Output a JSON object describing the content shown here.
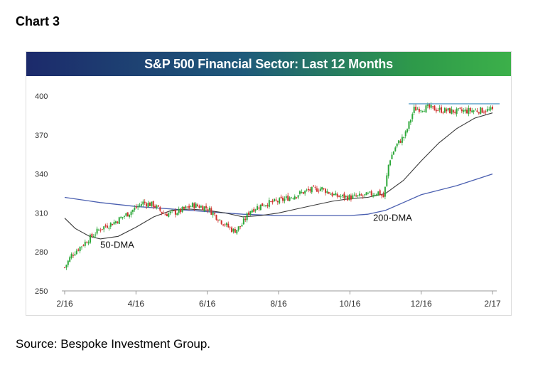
{
  "page": {
    "chart_label": "Chart 3",
    "source": "Source: Bespoke Investment Group."
  },
  "colors": {
    "up": "#2ea83a",
    "down": "#d0312d",
    "ma50": "#3a3a3a",
    "ma200": "#4a5fb0",
    "resistance": "#5aa0c8",
    "axis": "#999999"
  },
  "chart_data": {
    "type": "line",
    "title": "S&P 500 Financial Sector: Last 12 Months",
    "xlabel": "",
    "ylabel": "",
    "ylim": [
      250,
      400
    ],
    "yticks": [
      400,
      370,
      340,
      310,
      280,
      250
    ],
    "xticks": [
      {
        "label": "2/16",
        "m": 0
      },
      {
        "label": "4/16",
        "m": 2
      },
      {
        "label": "6/16",
        "m": 4
      },
      {
        "label": "8/16",
        "m": 6
      },
      {
        "label": "10/16",
        "m": 8
      },
      {
        "label": "12/16",
        "m": 10
      },
      {
        "label": "2/17",
        "m": 12
      }
    ],
    "xlim": [
      0,
      12
    ],
    "price_anchors": [
      [
        0.0,
        268
      ],
      [
        0.2,
        278
      ],
      [
        0.6,
        288
      ],
      [
        1.0,
        298
      ],
      [
        1.4,
        303
      ],
      [
        1.8,
        310
      ],
      [
        2.2,
        318
      ],
      [
        2.5,
        316
      ],
      [
        2.8,
        309
      ],
      [
        3.2,
        311
      ],
      [
        3.6,
        316
      ],
      [
        4.0,
        314
      ],
      [
        4.3,
        306
      ],
      [
        4.55,
        300
      ],
      [
        4.75,
        296
      ],
      [
        4.95,
        300
      ],
      [
        5.2,
        312
      ],
      [
        5.6,
        317
      ],
      [
        6.0,
        319
      ],
      [
        6.4,
        323
      ],
      [
        6.8,
        327
      ],
      [
        7.2,
        329
      ],
      [
        7.6,
        323
      ],
      [
        8.0,
        322
      ],
      [
        8.4,
        323
      ],
      [
        8.8,
        326
      ],
      [
        8.95,
        322
      ],
      [
        9.1,
        350
      ],
      [
        9.3,
        362
      ],
      [
        9.55,
        370
      ],
      [
        9.8,
        390
      ],
      [
        10.2,
        391
      ],
      [
        10.6,
        389
      ],
      [
        11.0,
        388
      ],
      [
        11.5,
        389
      ],
      [
        12.0,
        389
      ]
    ],
    "ma50": [
      [
        0.0,
        306
      ],
      [
        0.3,
        298
      ],
      [
        0.7,
        292
      ],
      [
        1.0,
        290
      ],
      [
        1.5,
        292
      ],
      [
        2.0,
        299
      ],
      [
        2.5,
        307
      ],
      [
        3.0,
        312
      ],
      [
        3.5,
        313
      ],
      [
        4.0,
        312
      ],
      [
        4.5,
        310
      ],
      [
        5.0,
        307
      ],
      [
        5.5,
        308
      ],
      [
        6.0,
        310
      ],
      [
        6.5,
        313
      ],
      [
        7.0,
        316
      ],
      [
        7.5,
        319
      ],
      [
        8.0,
        321
      ],
      [
        8.5,
        322
      ],
      [
        9.0,
        325
      ],
      [
        9.5,
        335
      ],
      [
        10.0,
        350
      ],
      [
        10.5,
        364
      ],
      [
        11.0,
        375
      ],
      [
        11.5,
        383
      ],
      [
        12.0,
        387
      ]
    ],
    "ma200": [
      [
        0.0,
        322
      ],
      [
        1.0,
        318
      ],
      [
        2.0,
        315
      ],
      [
        3.0,
        313
      ],
      [
        4.0,
        311
      ],
      [
        5.0,
        309
      ],
      [
        6.0,
        308
      ],
      [
        7.0,
        308
      ],
      [
        8.0,
        308
      ],
      [
        8.5,
        309
      ],
      [
        9.0,
        312
      ],
      [
        9.5,
        318
      ],
      [
        10.0,
        324
      ],
      [
        11.0,
        331
      ],
      [
        12.0,
        340
      ]
    ],
    "resistance": {
      "y": 394,
      "x_start": 9.65,
      "x_end": 12.2
    },
    "annotations": [
      {
        "text": "50-DMA",
        "m": 1.0,
        "v": 283
      },
      {
        "text": "200-DMA",
        "m": 8.65,
        "v": 304
      }
    ]
  }
}
